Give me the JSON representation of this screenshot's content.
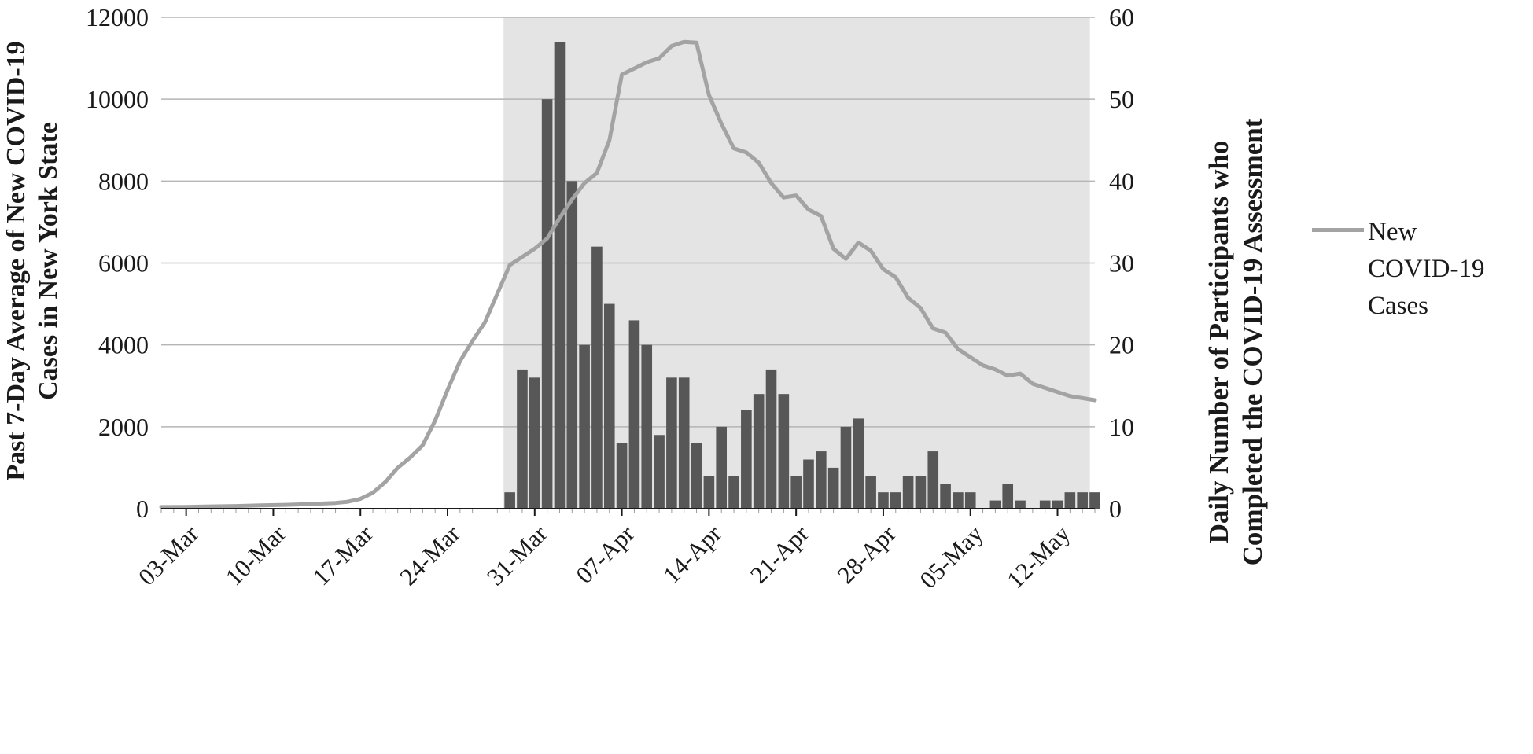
{
  "chart_data": {
    "type": "combo-bar-line",
    "title": "",
    "left_axis": {
      "label_lines": [
        "Past 7-Day Average of New COVID-19",
        "Cases in New York State"
      ],
      "min": 0,
      "max": 12000,
      "ticks": [
        0,
        2000,
        4000,
        6000,
        8000,
        10000,
        12000
      ]
    },
    "right_axis": {
      "label_lines": [
        "Daily Number of Participants who",
        "Completed the COVID-19 Assessment"
      ],
      "min": 0,
      "max": 60,
      "ticks": [
        0,
        10,
        20,
        30,
        40,
        50,
        60
      ]
    },
    "x_axis": {
      "day_min": 0,
      "day_max": 75,
      "ticks": [
        {
          "day": 2,
          "label": "03-Mar"
        },
        {
          "day": 9,
          "label": "10-Mar"
        },
        {
          "day": 16,
          "label": "17-Mar"
        },
        {
          "day": 23,
          "label": "24-Mar"
        },
        {
          "day": 30,
          "label": "31-Mar"
        },
        {
          "day": 37,
          "label": "07-Apr"
        },
        {
          "day": 44,
          "label": "14-Apr"
        },
        {
          "day": 51,
          "label": "21-Apr"
        },
        {
          "day": 58,
          "label": "28-Apr"
        },
        {
          "day": 65,
          "label": "05-May"
        },
        {
          "day": 72,
          "label": "12-May"
        }
      ],
      "label_rotation_deg": -45
    },
    "grid_color": "#b5b5b5",
    "shaded_region": {
      "start_day": 27.5,
      "end_day": 74.6,
      "color": "#e4e4e4"
    },
    "line_series": {
      "name": "New COVID-19 Cases",
      "axis": "left",
      "color": "#a3a3a3",
      "points": [
        [
          0,
          40
        ],
        [
          2,
          45
        ],
        [
          4,
          55
        ],
        [
          6,
          65
        ],
        [
          8,
          80
        ],
        [
          10,
          95
        ],
        [
          12,
          115
        ],
        [
          14,
          140
        ],
        [
          15,
          170
        ],
        [
          16,
          240
        ],
        [
          17,
          390
        ],
        [
          18,
          650
        ],
        [
          19,
          1000
        ],
        [
          20,
          1250
        ],
        [
          21,
          1550
        ],
        [
          22,
          2150
        ],
        [
          23,
          2900
        ],
        [
          24,
          3600
        ],
        [
          25,
          4100
        ],
        [
          26,
          4550
        ],
        [
          27,
          5250
        ],
        [
          28,
          5950
        ],
        [
          29,
          6150
        ],
        [
          30,
          6350
        ],
        [
          31,
          6600
        ],
        [
          32,
          7100
        ],
        [
          33,
          7550
        ],
        [
          34,
          7950
        ],
        [
          35,
          8200
        ],
        [
          36,
          9000
        ],
        [
          37,
          10600
        ],
        [
          38,
          10750
        ],
        [
          39,
          10900
        ],
        [
          40,
          11000
        ],
        [
          41,
          11300
        ],
        [
          42,
          11400
        ],
        [
          43,
          11380
        ],
        [
          44,
          10100
        ],
        [
          45,
          9400
        ],
        [
          46,
          8800
        ],
        [
          47,
          8700
        ],
        [
          48,
          8450
        ],
        [
          49,
          7950
        ],
        [
          50,
          7600
        ],
        [
          51,
          7650
        ],
        [
          52,
          7300
        ],
        [
          53,
          7150
        ],
        [
          54,
          6350
        ],
        [
          55,
          6100
        ],
        [
          56,
          6500
        ],
        [
          57,
          6300
        ],
        [
          58,
          5850
        ],
        [
          59,
          5650
        ],
        [
          60,
          5150
        ],
        [
          61,
          4900
        ],
        [
          62,
          4400
        ],
        [
          63,
          4300
        ],
        [
          64,
          3900
        ],
        [
          65,
          3700
        ],
        [
          66,
          3500
        ],
        [
          67,
          3400
        ],
        [
          68,
          3250
        ],
        [
          69,
          3300
        ],
        [
          70,
          3050
        ],
        [
          71,
          2950
        ],
        [
          72,
          2850
        ],
        [
          73,
          2750
        ],
        [
          74,
          2700
        ],
        [
          75,
          2650
        ]
      ]
    },
    "bar_series": {
      "axis": "right",
      "color": "#575757",
      "points": [
        [
          28,
          2
        ],
        [
          29,
          17
        ],
        [
          30,
          16
        ],
        [
          31,
          50
        ],
        [
          32,
          57
        ],
        [
          33,
          40
        ],
        [
          34,
          20
        ],
        [
          35,
          32
        ],
        [
          36,
          25
        ],
        [
          37,
          8
        ],
        [
          38,
          23
        ],
        [
          39,
          20
        ],
        [
          40,
          9
        ],
        [
          41,
          16
        ],
        [
          42,
          16
        ],
        [
          43,
          8
        ],
        [
          44,
          4
        ],
        [
          45,
          10
        ],
        [
          46,
          4
        ],
        [
          47,
          12
        ],
        [
          48,
          14
        ],
        [
          49,
          17
        ],
        [
          50,
          14
        ],
        [
          51,
          4
        ],
        [
          52,
          6
        ],
        [
          53,
          7
        ],
        [
          54,
          5
        ],
        [
          55,
          10
        ],
        [
          56,
          11
        ],
        [
          57,
          4
        ],
        [
          58,
          2
        ],
        [
          59,
          2
        ],
        [
          60,
          4
        ],
        [
          61,
          4
        ],
        [
          62,
          7
        ],
        [
          63,
          3
        ],
        [
          64,
          2
        ],
        [
          65,
          2
        ],
        [
          67,
          1
        ],
        [
          68,
          3
        ],
        [
          69,
          1
        ],
        [
          71,
          1
        ],
        [
          72,
          1
        ],
        [
          73,
          2
        ],
        [
          74,
          2
        ],
        [
          75,
          2
        ]
      ]
    }
  },
  "legend": {
    "label_lines": [
      "New",
      "COVID-19",
      "Cases"
    ]
  }
}
